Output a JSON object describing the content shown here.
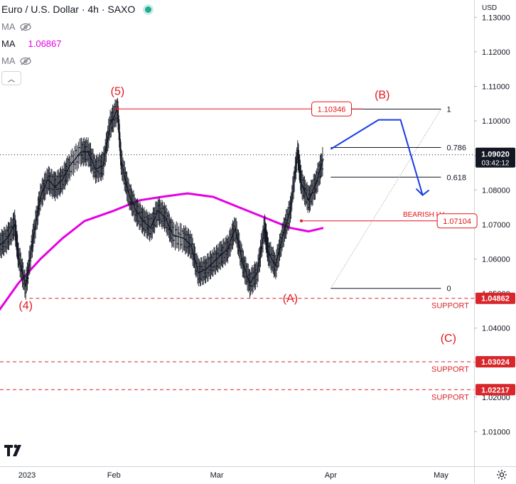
{
  "header": {
    "title": "Euro / U.S. Dollar · 4h · SAXO",
    "ma_rows": [
      {
        "label": "MA",
        "value": ""
      },
      {
        "label": "MA",
        "value": "1.06867"
      },
      {
        "label": "MA",
        "value": ""
      }
    ]
  },
  "colors": {
    "price": "#131722",
    "ma": "#e400e4",
    "annotation_red": "#e2161b",
    "projection_blue": "#1a3be6",
    "fib_line": "#131722",
    "price_tag_bg": "#131722",
    "support_line": "#d9262b"
  },
  "axis": {
    "currency_label": "USD",
    "y_ticks": [
      "1.13000",
      "1.12000",
      "1.11000",
      "1.10000",
      "1.09000",
      "1.08000",
      "1.07000",
      "1.06000",
      "1.05000",
      "1.04000",
      "1.03000",
      "1.02000",
      "1.01000"
    ],
    "x_ticks": [
      "2023",
      "Feb",
      "Mar",
      "Apr",
      "May"
    ]
  },
  "current_price": {
    "value": "1.09020",
    "countdown": "03:42:12"
  },
  "chart_data": {
    "type": "line",
    "title": "Euro / U.S. Dollar · 4h · SAXO",
    "ylim": [
      1.0,
      1.135
    ],
    "x_range": [
      "2023-01-01",
      "2023-05-10"
    ],
    "series": [
      {
        "name": "Euro / U.S. Dollar",
        "x": [
          "2023-01-01",
          "2023-01-03",
          "2023-01-05",
          "2023-01-06",
          "2023-01-08",
          "2023-01-10",
          "2023-01-12",
          "2023-01-14",
          "2023-01-16",
          "2023-01-18",
          "2023-01-20",
          "2023-01-23",
          "2023-01-25",
          "2023-01-27",
          "2023-01-29",
          "2023-01-31",
          "2023-02-02",
          "2023-02-03",
          "2023-02-05",
          "2023-02-07",
          "2023-02-09",
          "2023-02-11",
          "2023-02-13",
          "2023-02-15",
          "2023-02-17",
          "2023-02-20",
          "2023-02-22",
          "2023-02-24",
          "2023-02-26",
          "2023-02-28",
          "2023-03-02",
          "2023-03-04",
          "2023-03-06",
          "2023-03-08",
          "2023-03-10",
          "2023-03-12",
          "2023-03-14",
          "2023-03-15",
          "2023-03-17",
          "2023-03-19",
          "2023-03-21",
          "2023-03-23",
          "2023-03-24",
          "2023-03-26",
          "2023-03-28",
          "2023-03-30"
        ],
        "values": [
          1.064,
          1.066,
          1.07,
          1.061,
          1.052,
          1.066,
          1.078,
          1.083,
          1.081,
          1.083,
          1.087,
          1.091,
          1.091,
          1.086,
          1.087,
          1.099,
          1.1034,
          1.088,
          1.079,
          1.074,
          1.071,
          1.069,
          1.074,
          1.072,
          1.067,
          1.066,
          1.064,
          1.056,
          1.057,
          1.059,
          1.061,
          1.063,
          1.069,
          1.059,
          1.053,
          1.056,
          1.069,
          1.062,
          1.058,
          1.067,
          1.074,
          1.091,
          1.082,
          1.077,
          1.082,
          1.089
        ]
      },
      {
        "name": "MA",
        "x": [
          "2022-12-31",
          "2023-01-06",
          "2023-01-12",
          "2023-01-18",
          "2023-01-24",
          "2023-02-01",
          "2023-02-08",
          "2023-02-14",
          "2023-02-21",
          "2023-02-28",
          "2023-03-07",
          "2023-03-14",
          "2023-03-21",
          "2023-03-26",
          "2023-03-30"
        ],
        "values": [
          1.044,
          1.053,
          1.06,
          1.066,
          1.071,
          1.074,
          1.077,
          1.078,
          1.079,
          1.078,
          1.075,
          1.072,
          1.069,
          1.068,
          1.069
        ]
      }
    ],
    "annotations": {
      "wave_labels": [
        {
          "text": "(5)",
          "x": "2023-02-02",
          "y": 1.1075
        },
        {
          "text": "(4)",
          "x": "2023-01-08",
          "y": 1.0455
        },
        {
          "text": "(A)",
          "x": "2023-03-21",
          "y": 1.0475
        },
        {
          "text": "(B)",
          "x": "2023-04-15",
          "y": 1.1065
        },
        {
          "text": "(C)",
          "x": "2023-05-03",
          "y": 1.036
        }
      ],
      "price_labels": [
        {
          "text": "1.10346",
          "x": "2023-04-02",
          "y": 1.10346
        },
        {
          "text": "1.07104",
          "x": "2023-05-05",
          "y": 1.07104
        }
      ],
      "bearish_level": {
        "text": "BEARISH LV.",
        "value": 1.07104
      },
      "fib_levels": [
        {
          "ratio": "1",
          "value": 1.1034
        },
        {
          "ratio": "0.786",
          "value": 1.0923
        },
        {
          "ratio": "0.618",
          "value": 1.0837
        },
        {
          "ratio": "0",
          "value": 1.0515
        }
      ],
      "supports": [
        {
          "label": "SUPPORT",
          "value": 1.04862,
          "tag": "1.04862"
        },
        {
          "label": "SUPPORT",
          "value": 1.03024,
          "tag": "1.03024"
        },
        {
          "label": "SUPPORT",
          "value": 1.02217,
          "tag": "1.02217"
        }
      ],
      "projection_path": {
        "x": [
          "2023-04-01",
          "2023-04-14",
          "2023-04-20",
          "2023-04-26"
        ],
        "y": [
          1.0918,
          1.1003,
          1.1003,
          1.0785
        ]
      }
    }
  }
}
